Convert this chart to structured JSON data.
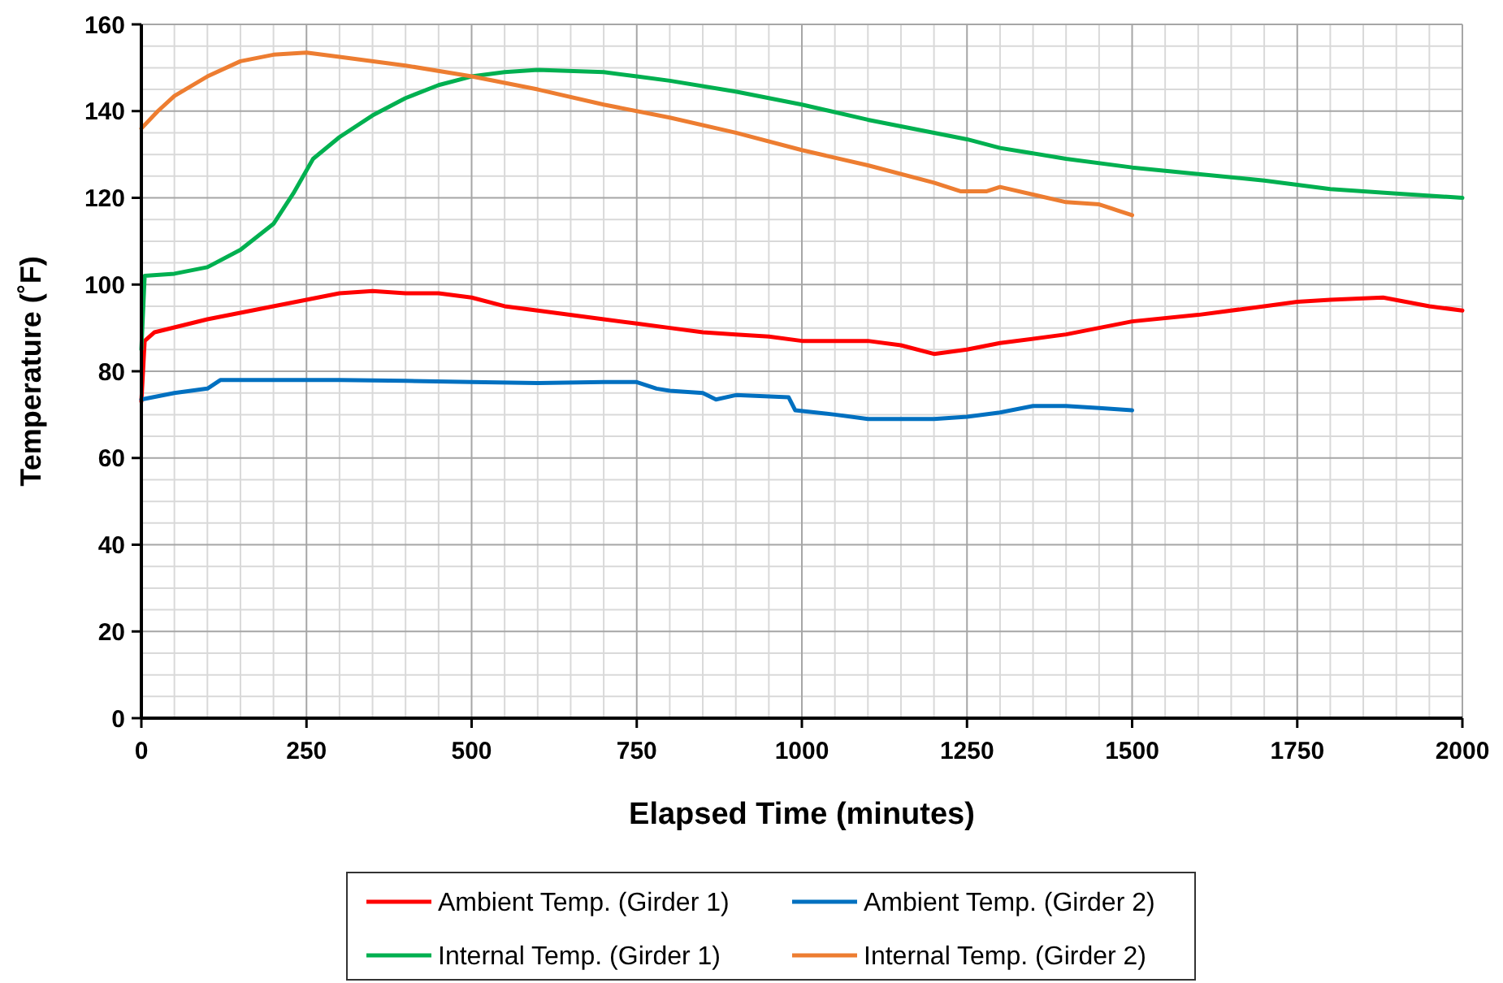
{
  "chart_data": {
    "type": "line",
    "xlabel": "Elapsed Time (minutes)",
    "ylabel": "Temperature (˚F)",
    "xlim": [
      0,
      2000
    ],
    "xticks": [
      0,
      250,
      500,
      750,
      1000,
      1250,
      1500,
      1750,
      2000
    ],
    "ylim": [
      0,
      160
    ],
    "yticks": [
      0,
      20,
      40,
      60,
      80,
      100,
      120,
      140,
      160
    ],
    "grid": true,
    "legend": "bottom",
    "marker": "none",
    "line_style": "solid",
    "series": [
      {
        "name": "Ambient Temp. (Girder 1)",
        "color": "#ff0000",
        "x": [
          0,
          5,
          20,
          100,
          200,
          300,
          350,
          400,
          450,
          500,
          550,
          600,
          700,
          750,
          800,
          850,
          900,
          950,
          1000,
          1100,
          1150,
          1200,
          1250,
          1300,
          1400,
          1500,
          1600,
          1700,
          1750,
          1800,
          1880,
          1950,
          2000
        ],
        "values": [
          73,
          87,
          89,
          92,
          95,
          98,
          98.5,
          98,
          98,
          97,
          95,
          94,
          92,
          91,
          90,
          89,
          88.5,
          88,
          87,
          87,
          86,
          84,
          85,
          86.5,
          88.5,
          91.5,
          93,
          95,
          96,
          96.5,
          97,
          95,
          94
        ]
      },
      {
        "name": "Ambient Temp. (Girder 2)",
        "color": "#0070c0",
        "x": [
          0,
          50,
          100,
          120,
          200,
          300,
          400,
          500,
          600,
          700,
          750,
          780,
          800,
          850,
          870,
          900,
          980,
          990,
          1050,
          1100,
          1200,
          1250,
          1300,
          1350,
          1400,
          1450,
          1500
        ],
        "values": [
          73.5,
          75,
          76,
          78,
          78,
          78,
          77.8,
          77.5,
          77.3,
          77.5,
          77.5,
          76,
          75.5,
          75,
          73.5,
          74.5,
          74,
          71,
          70,
          69,
          69,
          69.5,
          70.5,
          72,
          72,
          71.5,
          71
        ]
      },
      {
        "name": "Internal Temp. (Girder 1)",
        "color": "#00b050",
        "x": [
          0,
          5,
          50,
          100,
          150,
          200,
          230,
          260,
          300,
          350,
          400,
          450,
          500,
          550,
          600,
          700,
          750,
          800,
          900,
          1000,
          1100,
          1200,
          1250,
          1300,
          1400,
          1500,
          1600,
          1700,
          1750,
          1800,
          1900,
          2000
        ],
        "values": [
          85,
          102,
          102.5,
          104,
          108,
          114,
          121,
          129,
          134,
          139,
          143,
          146,
          148,
          149,
          149.5,
          149,
          148,
          147,
          144.5,
          141.5,
          138,
          135,
          133.5,
          131.5,
          129,
          127,
          125.5,
          124,
          123,
          122,
          121,
          120
        ]
      },
      {
        "name": "Internal Temp. (Girder 2)",
        "color": "#ed7d31",
        "x": [
          0,
          25,
          50,
          100,
          150,
          200,
          250,
          300,
          400,
          500,
          600,
          700,
          800,
          900,
          1000,
          1100,
          1200,
          1240,
          1280,
          1300,
          1400,
          1450,
          1480,
          1500
        ],
        "values": [
          136,
          140,
          143.5,
          148,
          151.5,
          153,
          153.5,
          152.5,
          150.5,
          148,
          145,
          141.5,
          138.5,
          135,
          131,
          127.5,
          123.5,
          121.5,
          121.5,
          122.5,
          119,
          118.5,
          117,
          116
        ]
      }
    ]
  }
}
